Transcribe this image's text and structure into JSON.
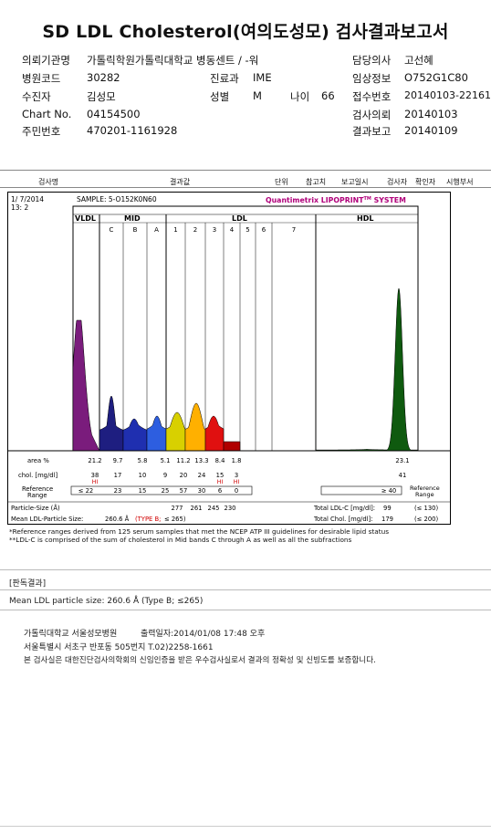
{
  "report": {
    "title": "SD LDL Cholesterol(여의도성모) 검사결과보고서",
    "fields": [
      {
        "label": "의뢰기관명",
        "value": "가톨릭학원가톨릭대학교 병동센트 / -워"
      },
      {
        "label": "병원코드",
        "value": "30282"
      },
      {
        "label": "진료과",
        "value": "IME"
      },
      {
        "label": "수진자",
        "value": "김성모"
      },
      {
        "label": "성별",
        "value": "M"
      },
      {
        "label": "나이",
        "value": "66"
      },
      {
        "label": "Chart No.",
        "value": "04154500"
      },
      {
        "label": "주민번호",
        "value": "470201-1161928"
      },
      {
        "label": "담당의사",
        "value": "고선혜"
      },
      {
        "label": "임상정보",
        "value": "O752G1C80"
      },
      {
        "label": "접수번호",
        "value": "20140103-22161"
      },
      {
        "label": "검사의뢰",
        "value": "20140103"
      },
      {
        "label": "결과보고",
        "value": "20140109"
      }
    ]
  },
  "columns": [
    "검사명",
    "결과값",
    "단위",
    "참고치",
    "보고일시",
    "검사자",
    "확인자",
    "시행부서"
  ],
  "chart_data": {
    "type": "area",
    "header": {
      "date": "1/ 7/2014",
      "time": "13: 2",
      "sample": "SAMPLE:   5-O152K0N60",
      "brand": "Quantimetrix LIPOPRINT",
      "brand_tm": "TM",
      "brand_suffix": " SYSTEM"
    },
    "groups": [
      "VLDL",
      "MID",
      "LDL",
      "HDL"
    ],
    "bands": [
      {
        "name": "VLDL",
        "label": "",
        "color": "#7a1c7c",
        "area": 21.2,
        "chol": 38,
        "flag": "HI",
        "ref": "≤ 22"
      },
      {
        "name": "MID C",
        "label": "C",
        "color": "#1e1e80",
        "area": 9.7,
        "chol": 17,
        "flag": "",
        "ref": "23"
      },
      {
        "name": "MID B",
        "label": "B",
        "color": "#1f2fb0",
        "area": 5.8,
        "chol": 10,
        "flag": "",
        "ref": "15"
      },
      {
        "name": "MID A",
        "label": "A",
        "color": "#2d5ee0",
        "area": 5.1,
        "chol": 9,
        "flag": "",
        "ref": "25"
      },
      {
        "name": "LDL 1",
        "label": "1",
        "color": "#d8d000",
        "area": 11.2,
        "chol": 20,
        "flag": "",
        "ref": "57"
      },
      {
        "name": "LDL 2",
        "label": "2",
        "color": "#ffb000",
        "area": 13.3,
        "chol": 24,
        "flag": "",
        "ref": "30"
      },
      {
        "name": "LDL 3",
        "label": "3",
        "color": "#e01010",
        "area": 8.4,
        "chol": 15,
        "flag": "HI",
        "ref": "6"
      },
      {
        "name": "LDL 4",
        "label": "4",
        "color": "#b00000",
        "area": 1.8,
        "chol": 3,
        "flag": "HI",
        "ref": "0"
      },
      {
        "name": "LDL 5",
        "label": "5",
        "color": "#900000",
        "area": null,
        "chol": null,
        "flag": "",
        "ref": ""
      },
      {
        "name": "LDL 6",
        "label": "6",
        "color": "#800000",
        "area": null,
        "chol": null,
        "flag": "",
        "ref": ""
      },
      {
        "name": "LDL 7",
        "label": "7",
        "color": "#700000",
        "area": null,
        "chol": null,
        "flag": "",
        "ref": ""
      },
      {
        "name": "HDL",
        "label": "",
        "color": "#0f5a0f",
        "area": 23.1,
        "chol": 41,
        "flag": "",
        "ref": "≥ 40"
      }
    ],
    "row_labels": {
      "area": "area %",
      "chol": "chol. [mg/dl]",
      "ref": "Reference Range",
      "size": "Particle-Size (Å)",
      "ref_right": "Reference Range"
    },
    "particle_sizes": [
      "277",
      "261",
      "245",
      "230"
    ],
    "mean_size_label": "Mean LDL-Particle Size:",
    "mean_size_value": "260.6 Å",
    "mean_size_type": "(TYPE B;",
    "mean_size_ref": "≤ 265)",
    "totals": [
      {
        "label": "Total LDL-C [mg/dl]:",
        "value": "99",
        "ref": "(≤ 130)"
      },
      {
        "label": "Total Chol. [mg/dl]:",
        "value": "179",
        "ref": "(≤ 200)"
      }
    ],
    "notes": [
      "*Reference ranges derived from 125 serum samples that met the NCEP ATP III guidelines for desirable lipid status",
      "**LDL-C is comprised of the sum of cholesterol in Mid bands C through A as well as all the subfractions"
    ]
  },
  "interpretation": {
    "heading": "[판독결과]",
    "text": "Mean LDL particle size: 260.6 Å (Type B; ≤265)"
  },
  "footer": {
    "line1_org": "가톨릭대학교 서울성모병원",
    "line1_print": "출력일자:2014/01/08 17:48 오후",
    "line2": "서울특별시 서초구 반포동 505번지 T.02)2258-1661",
    "line3": "본 검사실은 대한진단검사의학회의 신임인증을 받은 우수검사실로서 결과의 정확성 및 신빙도를 보증합니다."
  }
}
